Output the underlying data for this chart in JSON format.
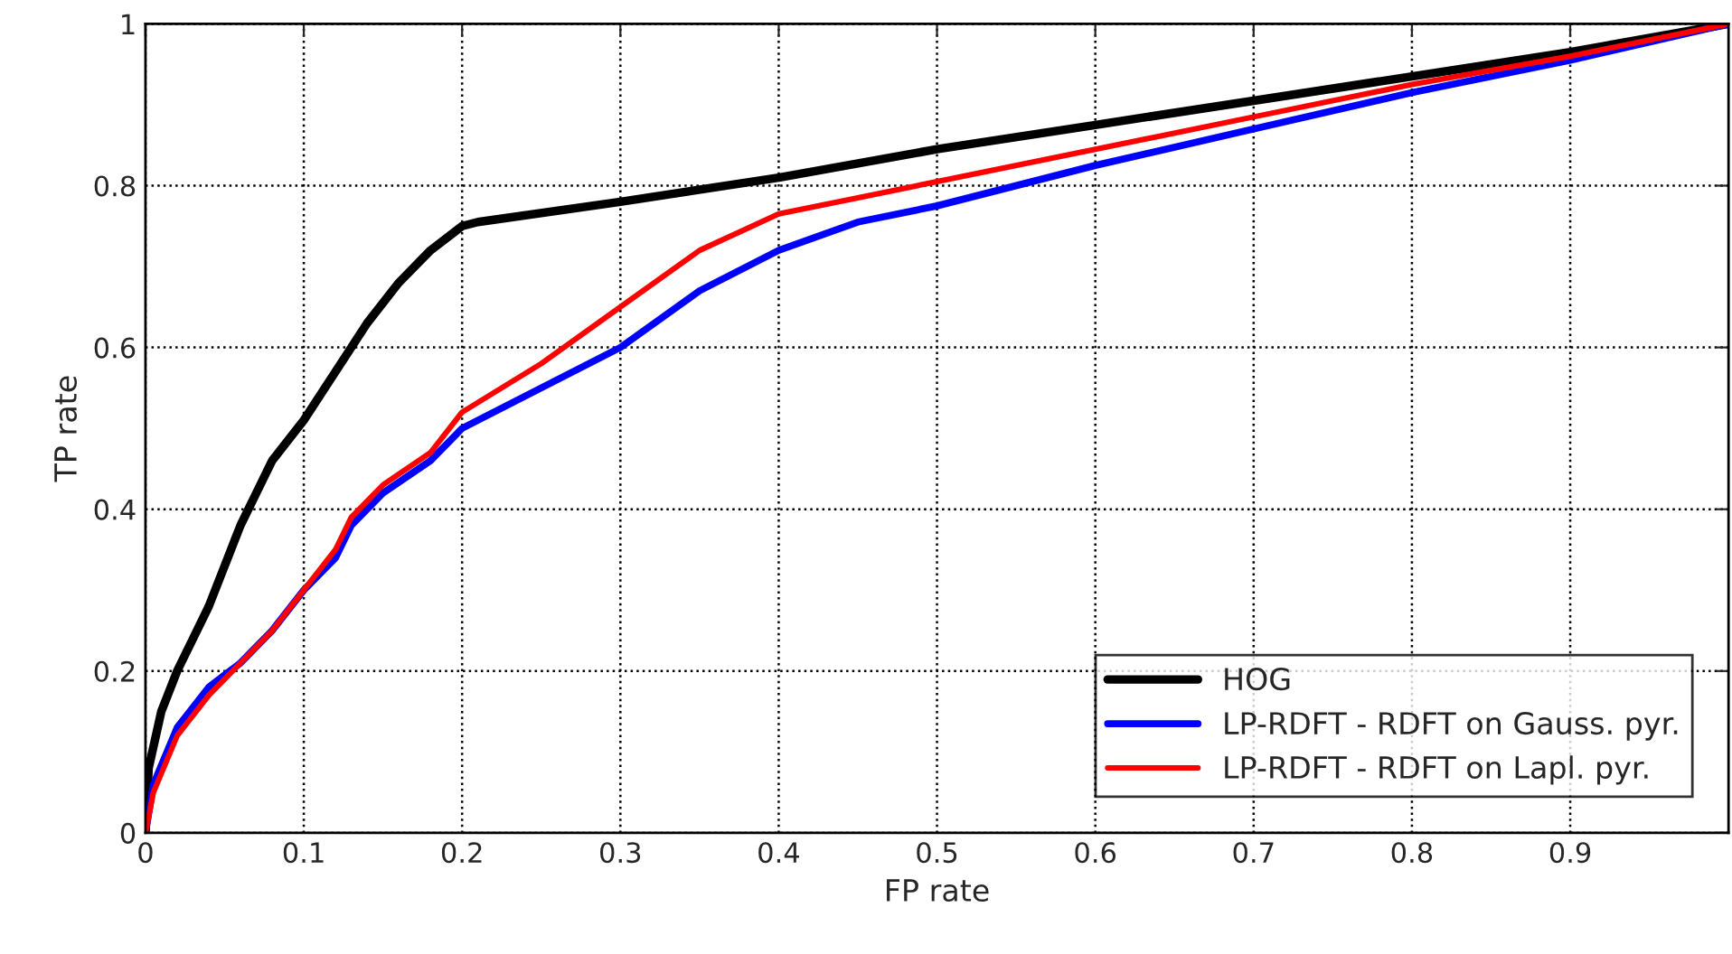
{
  "chart_data": {
    "type": "line",
    "xlabel": "FP rate",
    "ylabel": "TP rate",
    "xlim": [
      0,
      1
    ],
    "ylim": [
      0,
      1
    ],
    "xticks": [
      0,
      0.1,
      0.2,
      0.3,
      0.4,
      0.5,
      0.6,
      0.7,
      0.8,
      0.9
    ],
    "yticks": [
      0,
      0.2,
      0.4,
      0.6,
      0.8,
      1
    ],
    "grid": true,
    "legend": "bottom right",
    "line_style": "solid",
    "series": [
      {
        "name": "HOG",
        "color": "#000000",
        "x": [
          0,
          0.002,
          0.01,
          0.02,
          0.03,
          0.04,
          0.05,
          0.06,
          0.07,
          0.08,
          0.1,
          0.12,
          0.14,
          0.16,
          0.18,
          0.2,
          0.21,
          0.3,
          0.4,
          0.5,
          0.6,
          0.7,
          0.8,
          0.9,
          1
        ],
        "values": [
          0,
          0.08,
          0.15,
          0.2,
          0.24,
          0.28,
          0.33,
          0.38,
          0.42,
          0.46,
          0.51,
          0.57,
          0.63,
          0.68,
          0.72,
          0.75,
          0.755,
          0.78,
          0.81,
          0.845,
          0.875,
          0.905,
          0.935,
          0.965,
          1
        ]
      },
      {
        "name": "LP-RDFT - RDFT on Gauss. pyr.",
        "color": "#0000ff",
        "x": [
          0,
          0.005,
          0.02,
          0.04,
          0.06,
          0.08,
          0.1,
          0.12,
          0.13,
          0.15,
          0.18,
          0.2,
          0.25,
          0.3,
          0.35,
          0.4,
          0.45,
          0.5,
          0.6,
          0.7,
          0.8,
          0.9,
          1
        ],
        "values": [
          0,
          0.06,
          0.13,
          0.18,
          0.21,
          0.25,
          0.3,
          0.34,
          0.38,
          0.42,
          0.46,
          0.5,
          0.55,
          0.6,
          0.67,
          0.72,
          0.755,
          0.775,
          0.825,
          0.87,
          0.915,
          0.955,
          1
        ]
      },
      {
        "name": "LP-RDFT - RDFT on Lapl. pyr.",
        "color": "#ff0000",
        "x": [
          0,
          0.005,
          0.02,
          0.04,
          0.06,
          0.08,
          0.1,
          0.12,
          0.13,
          0.15,
          0.18,
          0.2,
          0.25,
          0.3,
          0.35,
          0.4,
          0.45,
          0.5,
          0.6,
          0.7,
          0.8,
          0.9,
          1
        ],
        "values": [
          0,
          0.05,
          0.12,
          0.17,
          0.21,
          0.25,
          0.3,
          0.35,
          0.39,
          0.43,
          0.47,
          0.52,
          0.58,
          0.65,
          0.72,
          0.765,
          0.785,
          0.805,
          0.845,
          0.885,
          0.925,
          0.96,
          1
        ]
      }
    ]
  }
}
